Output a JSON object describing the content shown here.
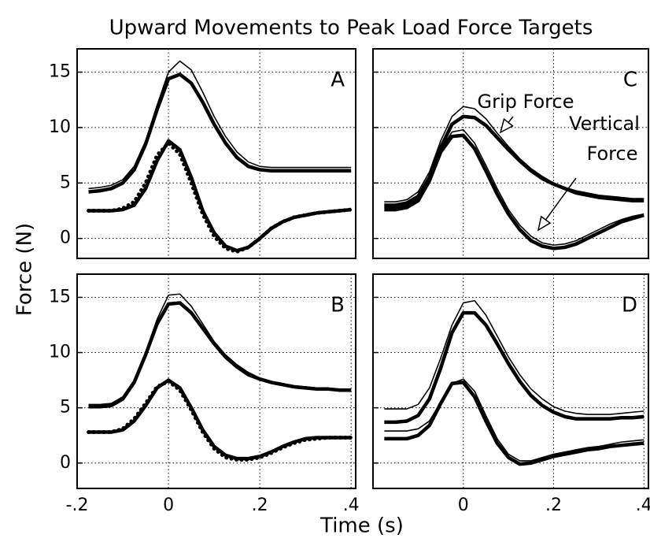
{
  "title": "Upward Movements to Peak Load Force Targets",
  "xlabel": "Time (s)",
  "ylabel": "Force (N)",
  "chart_data": [
    {
      "type": "line",
      "label": "A",
      "x": [
        -0.175,
        -0.15,
        -0.125,
        -0.1,
        -0.075,
        -0.05,
        -0.025,
        0,
        0.025,
        0.05,
        0.075,
        0.1,
        0.125,
        0.15,
        0.175,
        0.2,
        0.225,
        0.25,
        0.275,
        0.3,
        0.325,
        0.35,
        0.375,
        0.4
      ],
      "xlim": [
        -0.2,
        0.41
      ],
      "ylim": [
        -1.8,
        17.1
      ],
      "xticks": [
        0,
        0.2
      ],
      "yticks": [
        0,
        5,
        10,
        15
      ],
      "show_xtick_labels": false,
      "show_ytick_labels": true,
      "grid": true,
      "series": [
        {
          "style": "thin",
          "color": "#000000",
          "values": [
            4.5,
            4.6,
            4.8,
            5.3,
            6.5,
            8.8,
            12,
            15,
            16,
            15.2,
            13.2,
            11,
            9.2,
            7.8,
            6.9,
            6.5,
            6.4,
            6.4,
            6.4,
            6.4,
            6.4,
            6.4,
            6.4,
            6.4
          ]
        },
        {
          "style": "thick",
          "color": "#000000",
          "values": [
            4.2,
            4.3,
            4.5,
            5,
            6.2,
            8.5,
            11.6,
            14.4,
            14.8,
            14,
            12.3,
            10.3,
            8.6,
            7.3,
            6.5,
            6.2,
            6.1,
            6.1,
            6.1,
            6.1,
            6.1,
            6.1,
            6.1,
            6.1
          ]
        },
        {
          "style": "thick",
          "color": "#000000",
          "values": [
            2.5,
            2.5,
            2.5,
            2.6,
            3,
            4.5,
            7,
            8.8,
            8,
            5.5,
            2.5,
            0.5,
            -0.7,
            -1.1,
            -0.8,
            0,
            0.9,
            1.5,
            1.9,
            2.1,
            2.3,
            2.4,
            2.5,
            2.6
          ]
        },
        {
          "style": "dotted",
          "color": "#000000",
          "values": [
            2.5,
            2.5,
            2.5,
            2.7,
            3.3,
            5,
            7.5,
            8.6,
            7.6,
            5,
            2.2,
            0.2,
            -0.9,
            -1.2,
            -0.8,
            0,
            0.9,
            1.5,
            1.9,
            2.1,
            2.3,
            2.4,
            2.5,
            2.6
          ]
        }
      ]
    },
    {
      "type": "line",
      "label": "C",
      "x": [
        -0.175,
        -0.15,
        -0.125,
        -0.1,
        -0.075,
        -0.05,
        -0.025,
        0,
        0.025,
        0.05,
        0.075,
        0.1,
        0.125,
        0.15,
        0.175,
        0.2,
        0.225,
        0.25,
        0.275,
        0.3,
        0.325,
        0.35,
        0.375,
        0.4
      ],
      "xlim": [
        -0.2,
        0.41
      ],
      "ylim": [
        -1.8,
        17.1
      ],
      "xticks": [
        0,
        0.2
      ],
      "yticks": [
        0,
        5,
        10,
        15
      ],
      "show_xtick_labels": false,
      "show_ytick_labels": false,
      "grid": true,
      "annotations": [
        {
          "lines": [
            "Grip  Force"
          ]
        },
        {
          "lines": [
            "Vertical",
            "Force"
          ]
        }
      ],
      "series": [
        {
          "style": "thin",
          "color": "#000000",
          "values": [
            3.3,
            3.3,
            3.5,
            4.2,
            6,
            8.8,
            11,
            11.9,
            11.7,
            10.8,
            9.5,
            8.3,
            7.2,
            6.3,
            5.6,
            5,
            4.6,
            4.3,
            4.1,
            3.9,
            3.8,
            3.7,
            3.6,
            3.6
          ]
        },
        {
          "style": "thick",
          "color": "#000000",
          "values": [
            3,
            3,
            3.2,
            3.8,
            5.5,
            8.2,
            10.3,
            11,
            10.9,
            10.2,
            9.1,
            8,
            7,
            6.1,
            5.4,
            4.9,
            4.5,
            4.1,
            3.9,
            3.7,
            3.6,
            3.5,
            3.4,
            3.4
          ]
        },
        {
          "style": "thin",
          "color": "#000000",
          "values": [
            2.8,
            2.8,
            3,
            3.6,
            5.5,
            8,
            9.6,
            9.8,
            8.6,
            6.6,
            4.5,
            2.6,
            1.2,
            0.2,
            -0.4,
            -0.6,
            -0.5,
            -0.2,
            0.3,
            0.8,
            1.3,
            1.7,
            2,
            2.2
          ]
        },
        {
          "style": "thick",
          "color": "#000000",
          "values": [
            2.6,
            2.6,
            2.8,
            3.4,
            5.2,
            7.8,
            9.2,
            9.3,
            8.1,
            6.1,
            4,
            2.2,
            0.8,
            -0.2,
            -0.7,
            -0.9,
            -0.8,
            -0.5,
            0,
            0.5,
            1,
            1.5,
            1.8,
            2.1
          ]
        }
      ]
    },
    {
      "type": "line",
      "label": "B",
      "x": [
        -0.175,
        -0.15,
        -0.125,
        -0.1,
        -0.075,
        -0.05,
        -0.025,
        0,
        0.025,
        0.05,
        0.075,
        0.1,
        0.125,
        0.15,
        0.175,
        0.2,
        0.225,
        0.25,
        0.275,
        0.3,
        0.325,
        0.35,
        0.375,
        0.4
      ],
      "xlim": [
        -0.2,
        0.41
      ],
      "ylim": [
        -2.3,
        17.1
      ],
      "xticks": [
        {
          "value": -0.2,
          "label": "-.2"
        },
        0,
        {
          "value": 0.2,
          "label": ".2"
        },
        {
          "value": 0.4,
          "label": ".4"
        }
      ],
      "yticks": [
        0,
        5,
        10,
        15
      ],
      "show_xtick_labels": true,
      "show_ytick_labels": true,
      "grid": true,
      "series": [
        {
          "style": "thin",
          "color": "#000000",
          "values": [
            5.3,
            5.3,
            5.4,
            6,
            7.5,
            10,
            13,
            15.2,
            15.3,
            14.2,
            12.6,
            11,
            9.8,
            8.9,
            8.2,
            7.7,
            7.4,
            7.2,
            7,
            6.9,
            6.8,
            6.7,
            6.7,
            6.6
          ]
        },
        {
          "style": "thick",
          "color": "#000000",
          "values": [
            5.1,
            5.1,
            5.2,
            5.8,
            7.3,
            9.8,
            12.6,
            14.4,
            14.5,
            13.6,
            12.2,
            10.8,
            9.6,
            8.7,
            8,
            7.6,
            7.3,
            7.1,
            6.9,
            6.8,
            6.7,
            6.7,
            6.6,
            6.6
          ]
        },
        {
          "style": "thick",
          "color": "#000000",
          "values": [
            2.8,
            2.8,
            2.8,
            3,
            3.8,
            5.2,
            6.8,
            7.5,
            6.8,
            5,
            3,
            1.5,
            0.7,
            0.4,
            0.4,
            0.6,
            1,
            1.5,
            1.9,
            2.2,
            2.3,
            2.3,
            2.3,
            2.3
          ]
        },
        {
          "style": "dotted",
          "color": "#000000",
          "values": [
            2.8,
            2.8,
            2.8,
            3.1,
            4,
            5.4,
            6.9,
            7.4,
            6.6,
            4.8,
            2.8,
            1.3,
            0.5,
            0.3,
            0.3,
            0.5,
            0.9,
            1.4,
            1.8,
            2.1,
            2.2,
            2.3,
            2.3,
            2.3
          ]
        }
      ]
    },
    {
      "type": "line",
      "label": "D",
      "x": [
        -0.175,
        -0.15,
        -0.125,
        -0.1,
        -0.075,
        -0.05,
        -0.025,
        0,
        0.025,
        0.05,
        0.075,
        0.1,
        0.125,
        0.15,
        0.175,
        0.2,
        0.225,
        0.25,
        0.275,
        0.3,
        0.325,
        0.35,
        0.375,
        0.4
      ],
      "xlim": [
        -0.2,
        0.41
      ],
      "ylim": [
        -2.3,
        17.1
      ],
      "xticks": [
        0,
        {
          "value": 0.2,
          "label": ".2"
        },
        {
          "value": 0.4,
          "label": ".4"
        }
      ],
      "yticks": [
        0,
        5,
        10,
        15
      ],
      "show_xtick_labels": true,
      "show_ytick_labels": false,
      "grid": true,
      "series": [
        {
          "style": "thin",
          "color": "#000000",
          "values": [
            4.9,
            4.9,
            4.9,
            5.3,
            6.8,
            9.5,
            12.5,
            14.5,
            14.7,
            13.4,
            11.5,
            9.6,
            8,
            6.7,
            5.8,
            5.1,
            4.7,
            4.5,
            4.4,
            4.4,
            4.4,
            4.5,
            4.6,
            4.7
          ]
        },
        {
          "style": "thick",
          "color": "#000000",
          "values": [
            3.7,
            3.7,
            3.8,
            4.3,
            5.8,
            8.6,
            11.8,
            13.6,
            13.6,
            12.5,
            10.8,
            9,
            7.4,
            6.1,
            5.2,
            4.6,
            4.2,
            4,
            4,
            4,
            4,
            4.1,
            4.1,
            4.2
          ]
        },
        {
          "style": "thin",
          "color": "#000000",
          "values": [
            2.9,
            2.9,
            2.9,
            3.1,
            3.8,
            5.5,
            7.2,
            7.6,
            6.5,
            4.3,
            2.2,
            0.8,
            0.2,
            0.2,
            0.5,
            0.8,
            1,
            1.2,
            1.4,
            1.5,
            1.7,
            1.9,
            2,
            2.1
          ]
        },
        {
          "style": "thick",
          "color": "#000000",
          "values": [
            2.2,
            2.2,
            2.2,
            2.5,
            3.4,
            5.4,
            7.2,
            7.3,
            6,
            3.8,
            1.8,
            0.5,
            -0.1,
            0,
            0.3,
            0.6,
            0.8,
            1,
            1.2,
            1.3,
            1.5,
            1.6,
            1.7,
            1.8
          ]
        }
      ]
    }
  ]
}
